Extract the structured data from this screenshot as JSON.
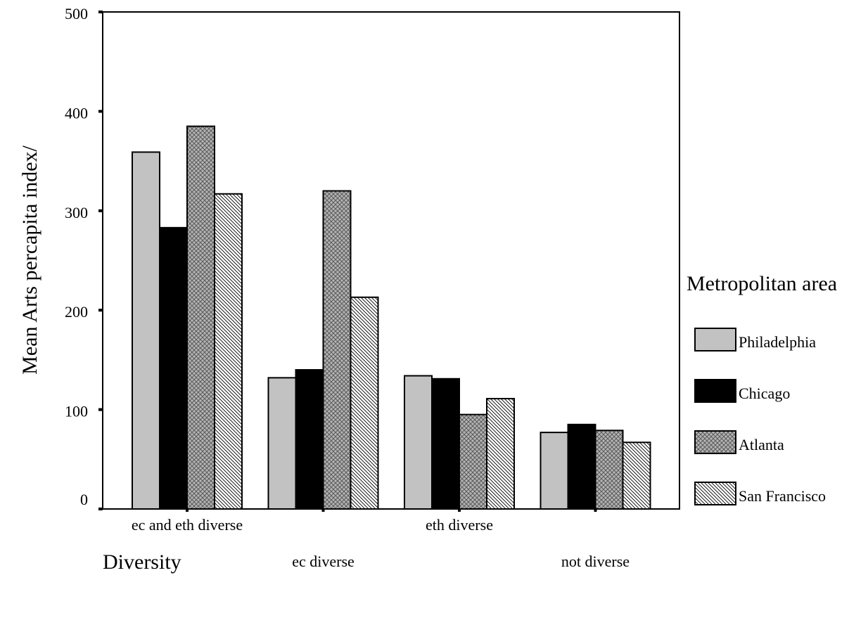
{
  "chart_data": {
    "type": "bar",
    "title": "",
    "xlabel": "Diversity",
    "ylabel": "Mean Arts percapita index/",
    "ylim": [
      0,
      500
    ],
    "yticks": [
      "0",
      "100",
      "200",
      "300",
      "400",
      "500"
    ],
    "categories": [
      "ec and eth diverse",
      "ec diverse",
      "eth diverse",
      "not diverse"
    ],
    "series": [
      {
        "name": "Philadelphia",
        "values": [
          359,
          132,
          134,
          77
        ],
        "pattern": "light-gray"
      },
      {
        "name": "Chicago",
        "values": [
          283,
          140,
          131,
          85
        ],
        "pattern": "black"
      },
      {
        "name": "Atlanta",
        "values": [
          385,
          320,
          95,
          79
        ],
        "pattern": "crosshatch"
      },
      {
        "name": "San Francisco",
        "values": [
          317,
          213,
          111,
          67
        ],
        "pattern": "diagonal-lines"
      }
    ],
    "legend": {
      "title": "Metropolitan area",
      "position": "right"
    },
    "grid": false
  }
}
